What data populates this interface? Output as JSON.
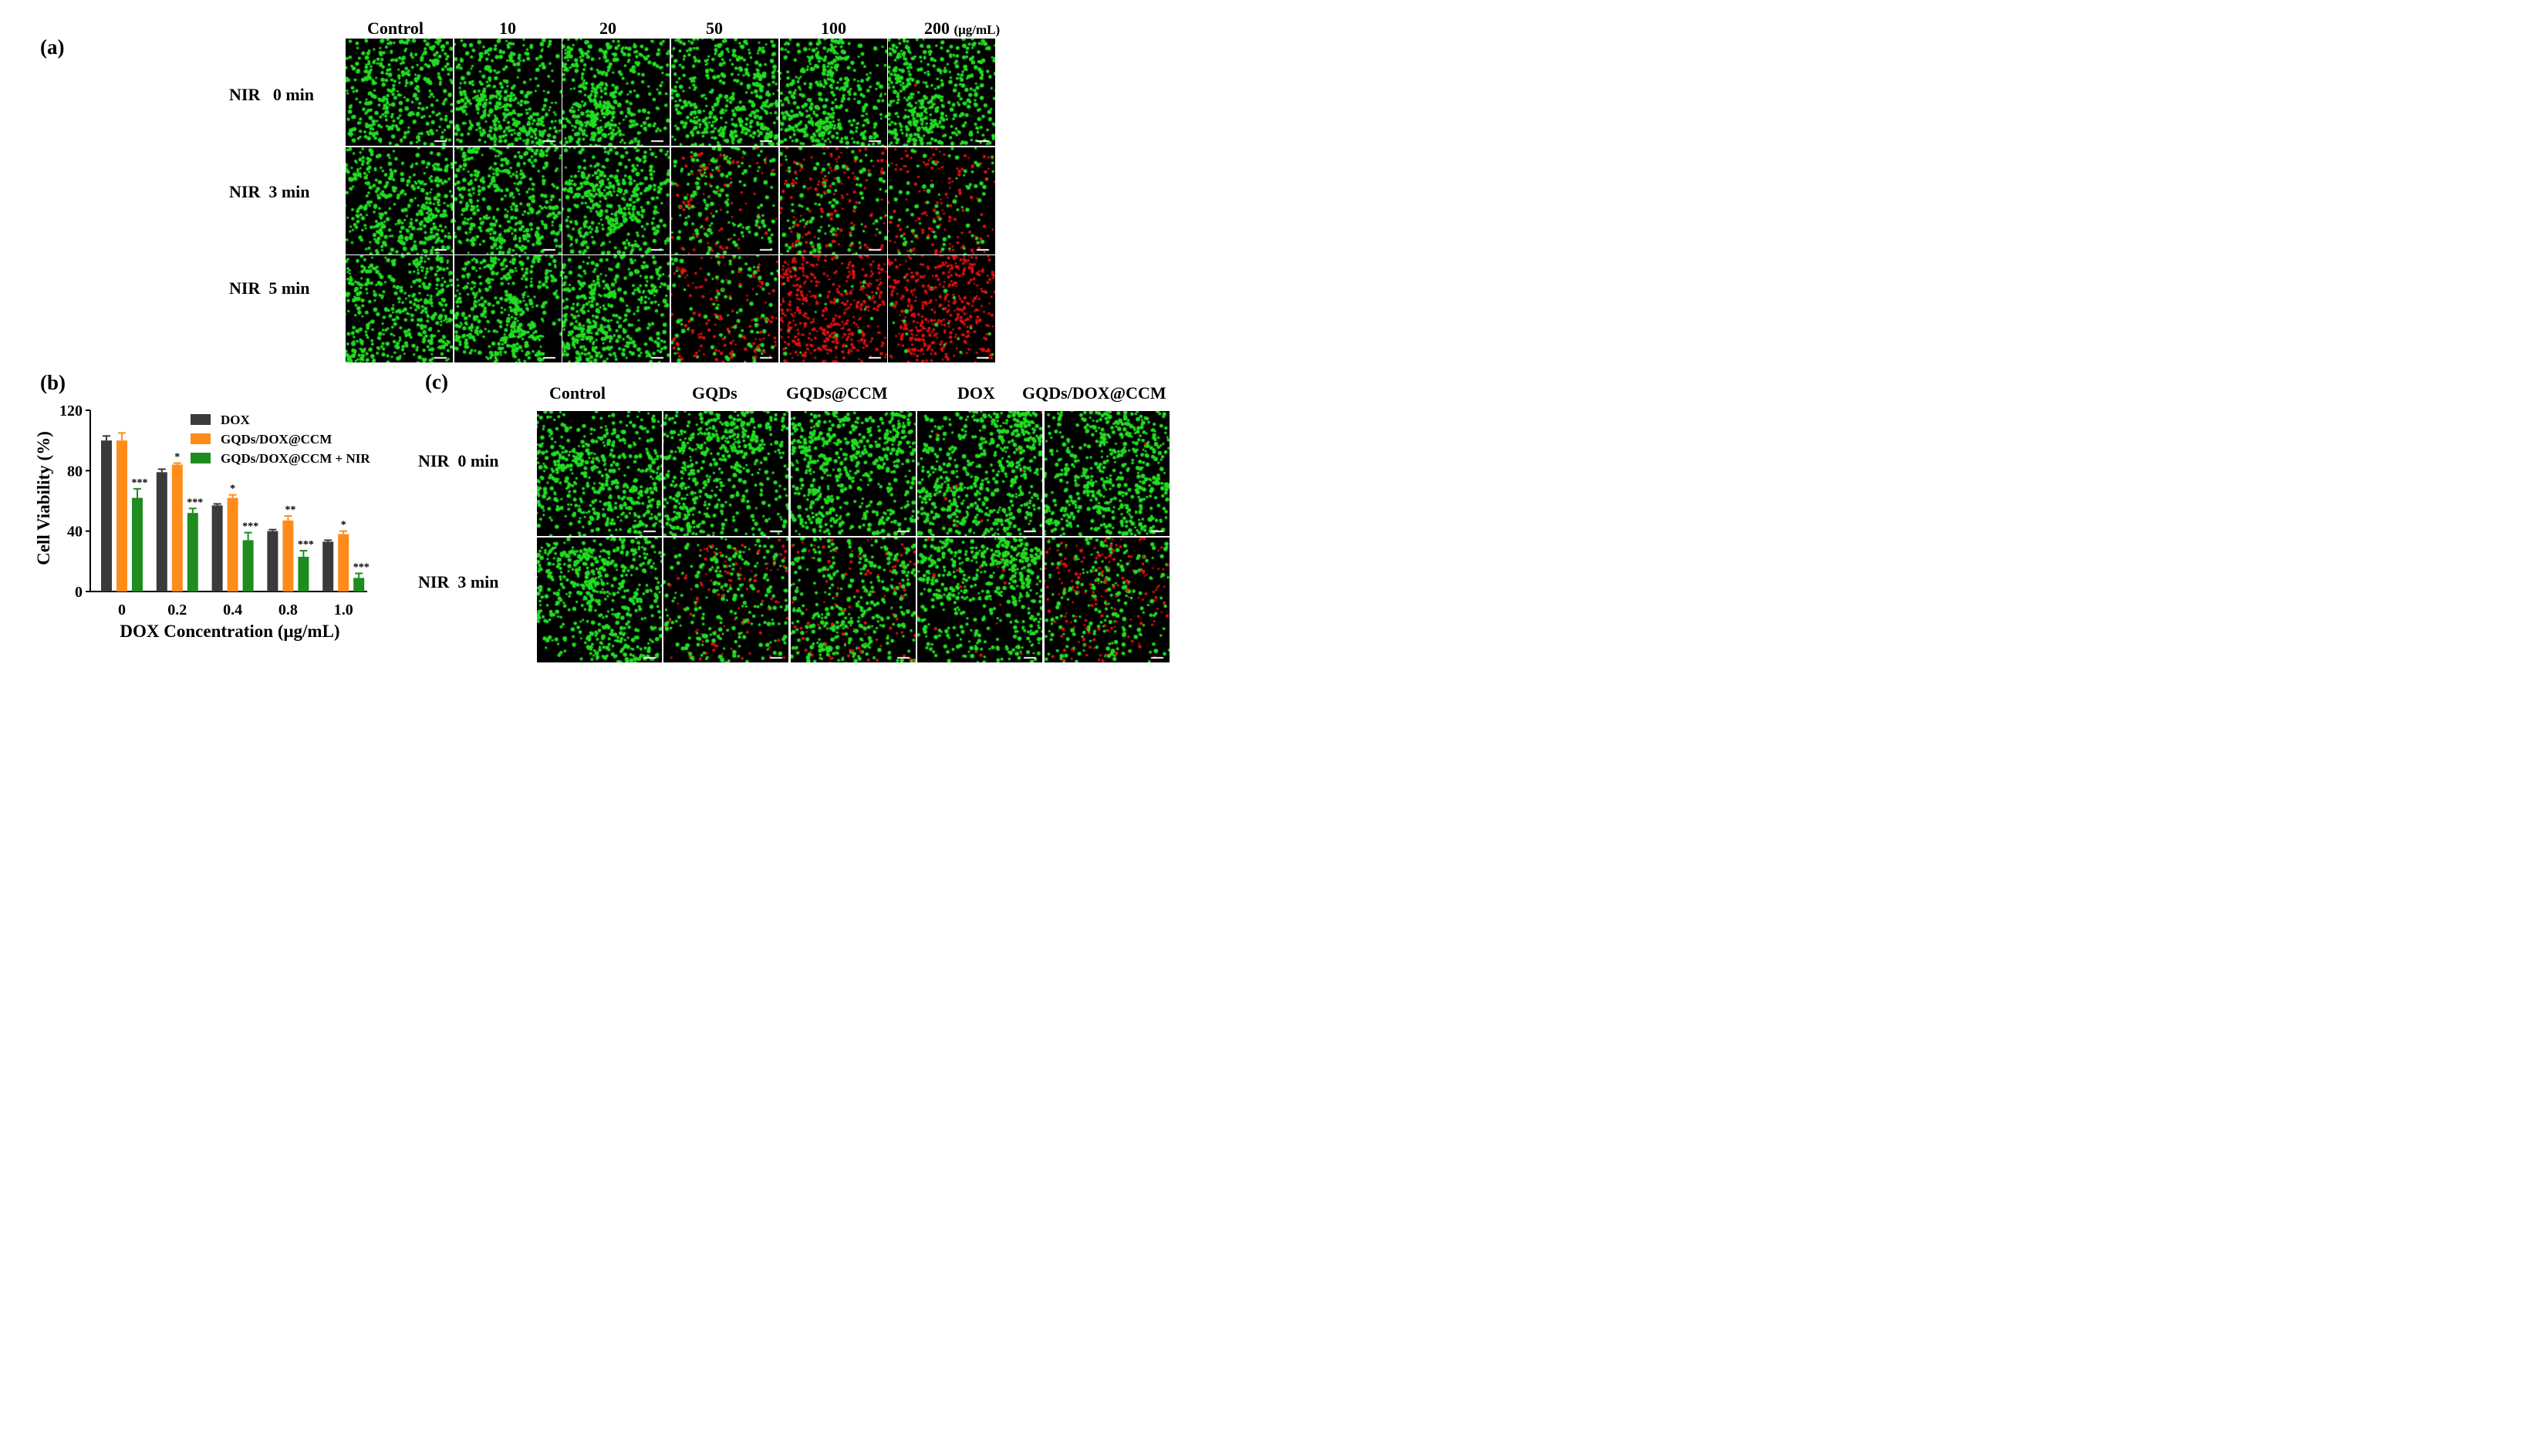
{
  "panel_a": {
    "label": "(a)",
    "columns": [
      "Control",
      "10",
      "20",
      "50",
      "100",
      "200"
    ],
    "unit": "(μg/mL)",
    "rows": [
      "NIR   0 min",
      "NIR  3 min",
      "NIR  5 min"
    ],
    "red_fraction": [
      [
        0.0,
        0.0,
        0.0,
        0.0,
        0.0,
        0.01
      ],
      [
        0.0,
        0.0,
        0.0,
        0.3,
        0.55,
        0.6
      ],
      [
        0.0,
        0.0,
        0.0,
        0.6,
        0.95,
        0.95
      ]
    ],
    "density": [
      [
        0.75,
        0.85,
        0.9,
        0.9,
        0.9,
        0.95
      ],
      [
        0.8,
        0.8,
        0.8,
        0.55,
        0.55,
        0.45
      ],
      [
        0.85,
        0.85,
        0.85,
        0.55,
        0.9,
        0.9
      ]
    ]
  },
  "panel_c": {
    "label": "(c)",
    "columns": [
      "Control",
      "GQDs",
      "GQDs@CCM",
      "DOX",
      "GQDs/DOX@CCM"
    ],
    "rows": [
      "NIR  0 min",
      "NIR  3 min"
    ],
    "red_fraction": [
      [
        0.0,
        0.0,
        0.0,
        0.01,
        0.01
      ],
      [
        0.0,
        0.3,
        0.25,
        0.02,
        0.45
      ]
    ],
    "density": [
      [
        0.8,
        0.8,
        0.85,
        0.85,
        0.8
      ],
      [
        0.8,
        0.55,
        0.7,
        0.8,
        0.6
      ]
    ]
  },
  "colors": {
    "live": "#22dd22",
    "dead": "#e01010",
    "bar_dox": "#3a3a3a",
    "bar_gqds": "#ff8c1a",
    "bar_nir": "#1e8c1e"
  },
  "chart_data": {
    "label": "(b)",
    "type": "bar",
    "xlabel": "DOX Concentration (μg/mL)",
    "ylabel": "Cell Viability (%)",
    "ylim": [
      0,
      120
    ],
    "yticks": [
      0,
      40,
      80,
      120
    ],
    "categories": [
      "0",
      "0.2",
      "0.4",
      "0.8",
      "1.0"
    ],
    "legend_position": "top-right",
    "series": [
      {
        "name": "DOX",
        "color": "#3a3a3a",
        "values": [
          100,
          79,
          57,
          40,
          33
        ],
        "errors": [
          3,
          2,
          1,
          1,
          1
        ],
        "sig": [
          "",
          "",
          "",
          "",
          ""
        ]
      },
      {
        "name": "GQDs/DOX@CCM",
        "color": "#ff8c1a",
        "values": [
          100,
          84,
          62,
          47,
          38
        ],
        "errors": [
          5,
          1,
          2,
          3,
          2
        ],
        "sig": [
          "",
          "*",
          "*",
          "**",
          "*"
        ]
      },
      {
        "name": "GQDs/DOX@CCM + NIR",
        "color": "#1e8c1e",
        "values": [
          62,
          52,
          34,
          23,
          9
        ],
        "errors": [
          6,
          3,
          5,
          4,
          3
        ],
        "sig": [
          "***",
          "***",
          "***",
          "***",
          "***"
        ]
      }
    ]
  }
}
